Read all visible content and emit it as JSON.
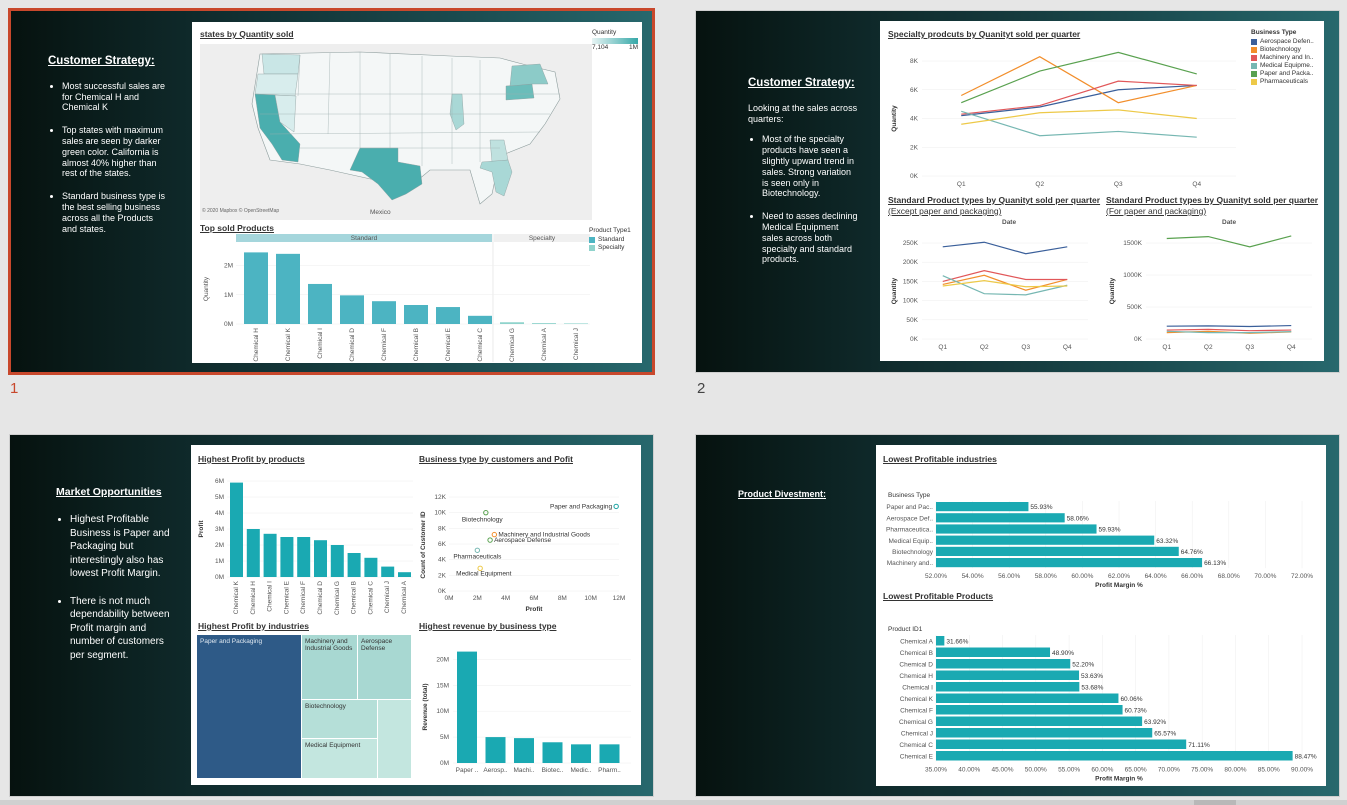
{
  "slides": [
    {
      "number": "1",
      "heading": "Customer Strategy:",
      "bullets": [
        "Most successful sales are for Chemical H and Chemical K",
        "Top states with maximum sales are seen by darker green color. California is almost 40% higher than rest of the states.",
        "Standard business type is the best selling business across all the Products and states."
      ],
      "map": {
        "title": "states by Quantity sold",
        "legend_title": "Quantity",
        "legend_min": "7,104",
        "legend_max": "1M",
        "credit": "© 2020 Mapbox © OpenStreetMap",
        "mexico_label": "Mexico"
      },
      "top_sold": {
        "title": "Top sold Products",
        "ylabel": "Quantity",
        "yticks": [
          "2M",
          "1M",
          "0M"
        ],
        "panels": [
          "Standard",
          "Specialty"
        ],
        "legend_title": "Product Type1",
        "legend_items": [
          "Standard",
          "Specialty"
        ],
        "standard": [
          {
            "label": "Chemical H",
            "value": 2.45
          },
          {
            "label": "Chemical K",
            "value": 2.4
          },
          {
            "label": "Chemical I",
            "value": 1.37
          },
          {
            "label": "Chemical D",
            "value": 0.98
          },
          {
            "label": "Chemical F",
            "value": 0.78
          },
          {
            "label": "Chemical B",
            "value": 0.65
          },
          {
            "label": "Chemical E",
            "value": 0.58
          },
          {
            "label": "Chemical C",
            "value": 0.28
          }
        ],
        "specialty": [
          {
            "label": "Chemical G",
            "value": 0.06
          },
          {
            "label": "Chemical A",
            "value": 0.03
          },
          {
            "label": "Chemical J",
            "value": 0.02
          }
        ]
      }
    },
    {
      "number": "2",
      "heading": "Customer Strategy:",
      "intro": "Looking at the sales across quarters:",
      "bullets": [
        "Most of the specialty products have seen a slightly upward trend in sales. Strong variation is seen only in Biotechnology.",
        "Need to asses declining Medical Equipment sales across both specialty and standard products."
      ],
      "specialty_chart": {
        "title": "Specialty prodcuts by Quanityt sold per quarter",
        "ylabel": "Quantity",
        "yticks": [
          "8K",
          "6K",
          "4K",
          "2K",
          "0K"
        ],
        "quarters": [
          "Q1",
          "Q2",
          "Q3",
          "Q4"
        ],
        "legend_title": "Business Type",
        "series": [
          {
            "name": "Aerospace Defen..",
            "color": "#3a5f9a",
            "values": [
              4.2,
              4.8,
              6.0,
              6.3
            ]
          },
          {
            "name": "Biotechnology",
            "color": "#f28e2b",
            "values": [
              5.6,
              8.3,
              5.1,
              6.3
            ]
          },
          {
            "name": "Machinery and In..",
            "color": "#e15759",
            "values": [
              4.3,
              4.9,
              6.6,
              6.3
            ]
          },
          {
            "name": "Medical Equipme..",
            "color": "#76b7b2",
            "values": [
              4.5,
              2.8,
              3.1,
              2.7
            ]
          },
          {
            "name": "Paper and Packa..",
            "color": "#59a14f",
            "values": [
              5.1,
              7.3,
              8.6,
              7.1
            ]
          },
          {
            "name": "Pharmaceuticals",
            "color": "#edc948",
            "values": [
              3.6,
              4.4,
              4.6,
              4.0
            ]
          }
        ]
      },
      "standard_chart": {
        "title": "Standard Product types by Quanityt sold per quarter",
        "subtitle": " (Except paper and packaging)",
        "axis_title": "Date",
        "ylabel": "Quantity",
        "yticks": [
          "250K",
          "200K",
          "150K",
          "100K",
          "50K",
          "0K"
        ],
        "quarters": [
          "Q1",
          "Q2",
          "Q3",
          "Q4"
        ],
        "series": [
          {
            "color": "#3a5f9a",
            "values": [
              240,
              252,
              222,
              240
            ]
          },
          {
            "color": "#f28e2b",
            "values": [
              142,
              166,
              127,
              155
            ]
          },
          {
            "color": "#e15759",
            "values": [
              150,
              178,
              155,
              155
            ]
          },
          {
            "color": "#76b7b2",
            "values": [
              165,
              118,
              115,
              140
            ]
          },
          {
            "color": "#edc948",
            "values": [
              138,
              152,
              136,
              138
            ]
          }
        ]
      },
      "paper_chart": {
        "title": "Standard Product types by Quanityt sold per quarter",
        "subtitle": " (For paper and packaging)",
        "title_prefix": "quarter (",
        "axis_title": "Date",
        "ylabel": "Quantity",
        "yticks": [
          "1500K",
          "1000K",
          "500K",
          "0K"
        ],
        "quarters": [
          "Q1",
          "Q2",
          "Q3",
          "Q4"
        ],
        "series": [
          {
            "color": "#59a14f",
            "values": [
              1570,
              1600,
              1440,
              1610
            ]
          },
          {
            "color": "#3a5f9a",
            "values": [
              200,
              205,
              195,
              210
            ]
          },
          {
            "color": "#f28e2b",
            "values": [
              100,
              120,
              90,
              110
            ]
          },
          {
            "color": "#e15759",
            "values": [
              140,
              150,
              130,
              140
            ]
          },
          {
            "color": "#76b7b2",
            "values": [
              120,
              100,
              100,
              115
            ]
          }
        ]
      }
    },
    {
      "heading": "Market Opportunities",
      "bullets": [
        "Highest Profitable Business is Paper and Packaging but interestingly also has lowest Profit Margin.",
        "There is not much dependability between Profit margin and number of customers per segment."
      ],
      "profit_products": {
        "title": "Highest Profit by products",
        "ylabel": "Profit",
        "yticks": [
          "6M",
          "5M",
          "4M",
          "3M",
          "2M",
          "1M",
          "0M"
        ],
        "bars": [
          {
            "label": "Chemical K",
            "value": 5.9
          },
          {
            "label": "Chemical H",
            "value": 3.0
          },
          {
            "label": "Chemical I",
            "value": 2.7
          },
          {
            "label": "Chemical E",
            "value": 2.5
          },
          {
            "label": "Chemical F",
            "value": 2.5
          },
          {
            "label": "Chemical D",
            "value": 2.3
          },
          {
            "label": "Chemical G",
            "value": 2.0
          },
          {
            "label": "Chemical B",
            "value": 1.5
          },
          {
            "label": "Chemical C",
            "value": 1.2
          },
          {
            "label": "Chemical J",
            "value": 0.65
          },
          {
            "label": "Chemical A",
            "value": 0.3
          }
        ]
      },
      "scatter": {
        "title": "Business type by customers and Pofit",
        "xlabel": "Profit",
        "ylabel": "Count of Customer ID",
        "yticks": [
          "12K",
          "10K",
          "8K",
          "6K",
          "4K",
          "2K",
          "0K"
        ],
        "xticks": [
          "0M",
          "2M",
          "4M",
          "6M",
          "8M",
          "10M",
          "12M"
        ],
        "points": [
          {
            "label": "Paper and Packaging",
            "x": 11.8,
            "y": 10.8,
            "color": "#1aa3a3"
          },
          {
            "label": "Biotechnology",
            "x": 2.6,
            "y": 10.0,
            "color": "#59a14f"
          },
          {
            "label": "Machinery and Industrial Goods",
            "x": 3.2,
            "y": 7.2,
            "color": "#f28e2b"
          },
          {
            "label": "Aerospace Defense",
            "x": 2.9,
            "y": 6.5,
            "color": "#59a14f"
          },
          {
            "label": "Pharmaceuticals",
            "x": 2.0,
            "y": 5.2,
            "color": "#76b7b2"
          },
          {
            "label": "Medical Equipment",
            "x": 2.2,
            "y": 2.9,
            "color": "#edc948"
          }
        ]
      },
      "treemap": {
        "title": "Highest Profit by industries",
        "cells": [
          "Paper and Packaging",
          "Machinery and Industrial Goods",
          "Aerospace Defense",
          "Biotechnology",
          "Medical Equipment"
        ]
      },
      "revenue": {
        "title": "Highest revenue by business type",
        "ylabel": "Revenue (total)",
        "yticks": [
          "20M",
          "15M",
          "10M",
          "5M",
          "0M"
        ],
        "bars": [
          {
            "label": "Paper ..",
            "value": 21.5
          },
          {
            "label": "Aerosp..",
            "value": 5.0
          },
          {
            "label": "Machi..",
            "value": 4.8
          },
          {
            "label": "Biotec..",
            "value": 4.0
          },
          {
            "label": "Medic..",
            "value": 3.6
          },
          {
            "label": "Pharm..",
            "value": 3.6
          }
        ]
      }
    },
    {
      "heading": "Product Divestment:",
      "industries": {
        "title": "Lowest Profitable industries",
        "header": "Business Type",
        "xlabel": "Profit Margin %",
        "xticks": [
          "52.00%",
          "54.00%",
          "56.00%",
          "58.00%",
          "60.00%",
          "62.00%",
          "64.00%",
          "66.00%",
          "68.00%",
          "70.00%",
          "72.00%"
        ],
        "bars": [
          {
            "label": "Paper and Pac..",
            "value": 55.93,
            "text": "55.93%"
          },
          {
            "label": "Aerospace Def..",
            "value": 58.06,
            "text": "58.06%"
          },
          {
            "label": "Pharmaceutica..",
            "value": 59.93,
            "text": "59.93%"
          },
          {
            "label": "Medical Equip..",
            "value": 63.32,
            "text": "63.32%"
          },
          {
            "label": "Biotechnology",
            "value": 64.76,
            "text": "64.76%"
          },
          {
            "label": "Machinery and..",
            "value": 66.13,
            "text": "66.13%"
          }
        ]
      },
      "products": {
        "title": "Lowest Profitable Products",
        "header": "Product ID1",
        "xlabel": "Profit Margin %",
        "xticks": [
          "35.00%",
          "40.00%",
          "45.00%",
          "50.00%",
          "55.00%",
          "60.00%",
          "65.00%",
          "70.00%",
          "75.00%",
          "80.00%",
          "85.00%",
          "90.00%"
        ],
        "bars": [
          {
            "label": "Chemical A",
            "value": 31.66,
            "text": "31.66%"
          },
          {
            "label": "Chemical B",
            "value": 48.9,
            "text": "48.90%"
          },
          {
            "label": "Chemical D",
            "value": 52.2,
            "text": "52.20%"
          },
          {
            "label": "Chemical H",
            "value": 53.63,
            "text": "53.63%"
          },
          {
            "label": "Chemical I",
            "value": 53.68,
            "text": "53.68%"
          },
          {
            "label": "Chemical K",
            "value": 60.06,
            "text": "60.06%"
          },
          {
            "label": "Chemical F",
            "value": 60.73,
            "text": "60.73%"
          },
          {
            "label": "Chemical G",
            "value": 63.92,
            "text": "63.92%"
          },
          {
            "label": "Chemical J",
            "value": 65.57,
            "text": "65.57%"
          },
          {
            "label": "Chemical C",
            "value": 71.11,
            "text": "71.11%"
          },
          {
            "label": "Chemical E",
            "value": 88.47,
            "text": "88.47%"
          }
        ]
      }
    }
  ],
  "colors": {
    "bar_teal": "#1aa9b2",
    "bar_teal_light": "#4cb4c2",
    "accent_selected": "#c8482c",
    "treemap_dark": "#2e5a87",
    "treemap_mid": "#a8d8d2",
    "treemap_light": "#c3e6df"
  }
}
